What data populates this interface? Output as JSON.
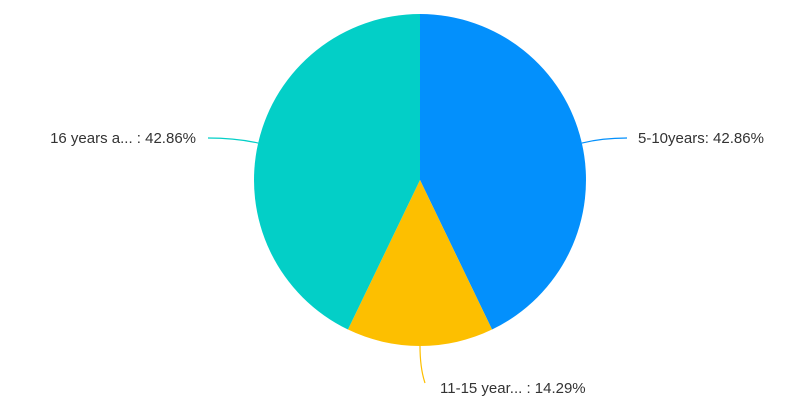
{
  "chart_data": {
    "type": "pie",
    "categories": [
      "5-10years",
      "11-15 year...",
      "16 years a..."
    ],
    "values": [
      42.86,
      14.29,
      42.86
    ],
    "labels": [
      "5-10years: 42.86%",
      "11-15 year... : 14.29%",
      "16 years a... : 42.86%"
    ],
    "colors": [
      "#0390fc",
      "#fdbf00",
      "#03cfc7"
    ],
    "start": "top",
    "direction": "clockwise"
  }
}
